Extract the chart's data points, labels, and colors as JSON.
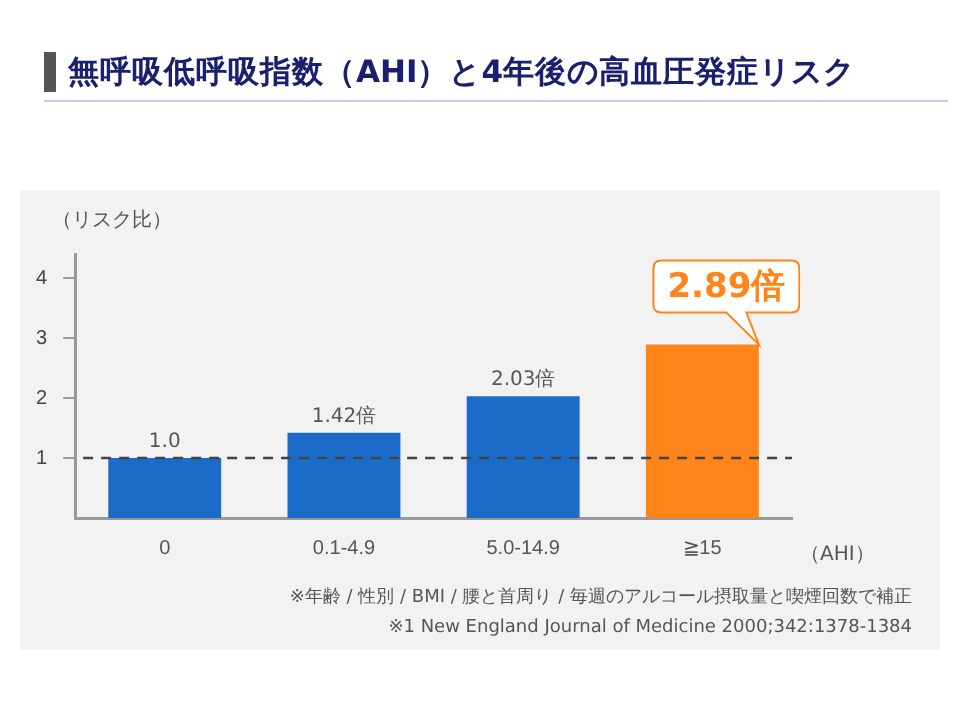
{
  "chart_data": {
    "type": "bar",
    "title": "無呼吸低呼吸指数（AHI）と4年後の高血圧発症リスク",
    "ylabel": "（リスク比）",
    "xlabel": "（AHI）",
    "categories": [
      "0",
      "0.1-4.9",
      "5.0-14.9",
      "≧15"
    ],
    "values": [
      1.0,
      1.42,
      2.03,
      2.89
    ],
    "colors": [
      "#1b6cc8",
      "#1b6cc8",
      "#1b6cc8",
      "#ff8419"
    ],
    "value_labels": [
      "1.0",
      "1.42倍",
      "2.03倍",
      "2.89倍"
    ],
    "ylim": [
      0,
      4.4
    ],
    "yticks": [
      1,
      2,
      3,
      4
    ],
    "grid": false,
    "legend": false,
    "ref_lines": [
      {
        "axis": "y",
        "value": 1,
        "line_style": "dashed",
        "color": "#444444"
      }
    ],
    "annotations": [
      "※年齢 / 性別 / BMI / 腰と首周り / 毎週のアルコール摂取量と喫煙回数で補正",
      "※1 New England Journal of Medicine 2000;342:1378-1384"
    ]
  }
}
